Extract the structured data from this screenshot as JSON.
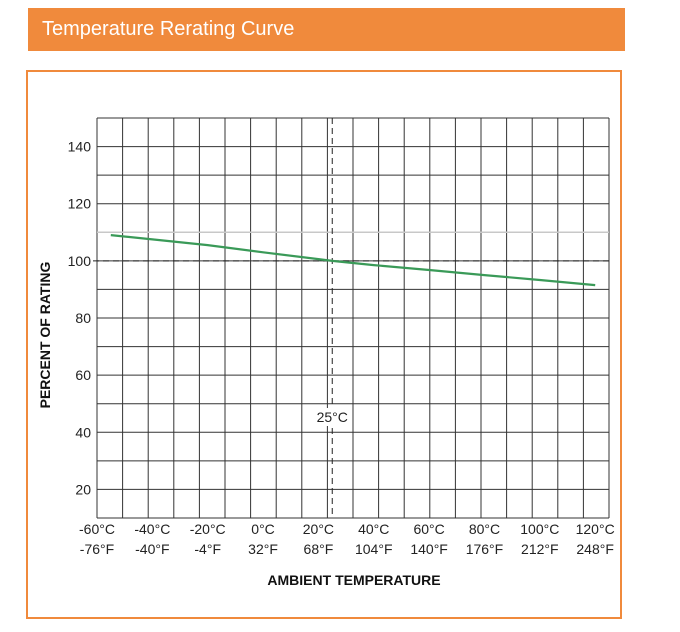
{
  "header": {
    "title": "Temperature Rerating Curve"
  },
  "chart_data": {
    "type": "line",
    "title": "Temperature Rerating Curve",
    "xlabel": "AMBIENT TEMPERATURE",
    "ylabel": "PERCENT OF RATING",
    "x_tick_labels_c": [
      "-60°C",
      "-40°C",
      "-20°C",
      "0°C",
      "20°C",
      "40°C",
      "60°C",
      "80°C",
      "100°C",
      "120°C"
    ],
    "x_tick_labels_f": [
      "-76°F",
      "-40°F",
      "-4°F",
      "32°F",
      "68°F",
      "104°F",
      "140°F",
      "176°F",
      "212°F",
      "248°F"
    ],
    "x_ticks": [
      -60,
      -40,
      -20,
      0,
      20,
      40,
      60,
      80,
      100,
      120
    ],
    "y_ticks": [
      20,
      40,
      60,
      80,
      100,
      120,
      140
    ],
    "xlim": [
      -60,
      125
    ],
    "ylim": [
      10,
      150
    ],
    "grid": true,
    "reference_line_y": 100,
    "reference_line_x": 25,
    "reference_label": "25°C",
    "series": [
      {
        "x": [
          -55,
          -40,
          -20,
          0,
          20,
          25,
          40,
          60,
          80,
          100,
          120
        ],
        "y": [
          109,
          107.5,
          105.5,
          103,
          100.6,
          100,
          98.5,
          96.8,
          95,
          93.3,
          91.5
        ],
        "color": "#3a9a58"
      }
    ],
    "light_gridline_y": 110
  }
}
